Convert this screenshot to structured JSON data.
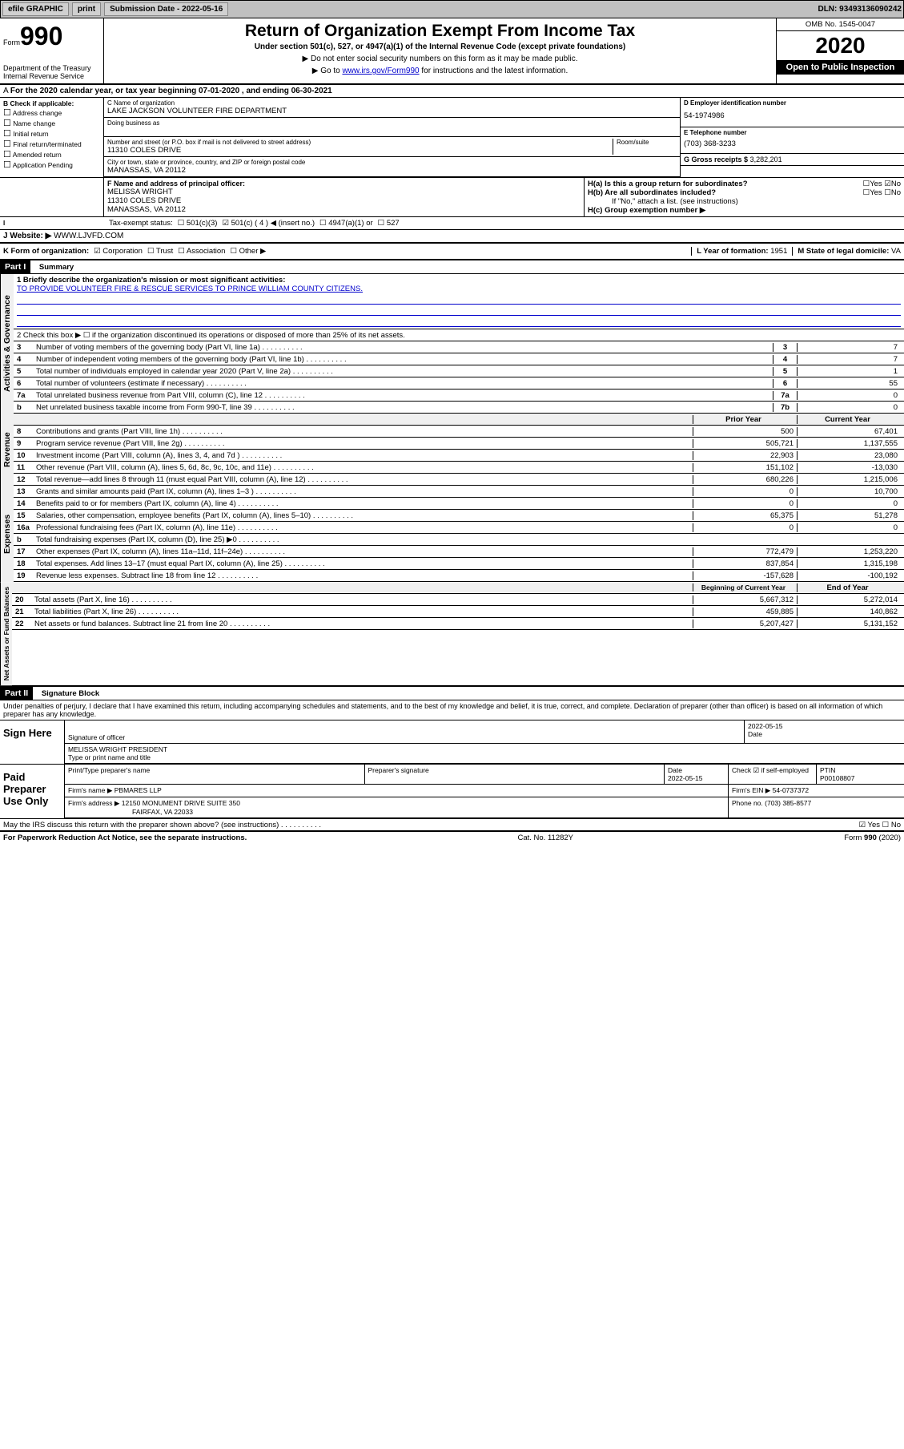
{
  "topbar": {
    "efile": "efile GRAPHIC",
    "print": "print",
    "sub_label": "Submission Date - 2022-05-16",
    "dln": "DLN: 93493136090242"
  },
  "header": {
    "form_word": "Form",
    "form_num": "990",
    "dept": "Department of the Treasury\nInternal Revenue Service",
    "title": "Return of Organization Exempt From Income Tax",
    "subtitle": "Under section 501(c), 527, or 4947(a)(1) of the Internal Revenue Code (except private foundations)",
    "note1": "▶ Do not enter social security numbers on this form as it may be made public.",
    "note2_pre": "▶ Go to ",
    "note2_link": "www.irs.gov/Form990",
    "note2_post": " for instructions and the latest information.",
    "omb": "OMB No. 1545-0047",
    "year": "2020",
    "open": "Open to Public Inspection"
  },
  "row_a": "For the 2020 calendar year, or tax year beginning 07-01-2020    , and ending 06-30-2021",
  "section_b": {
    "heading": "B Check if applicable:",
    "items": [
      "Address change",
      "Name change",
      "Initial return",
      "Final return/terminated",
      "Amended return",
      "Application Pending"
    ]
  },
  "section_c": {
    "name_label": "C Name of organization",
    "name": "LAKE JACKSON VOLUNTEER FIRE DEPARTMENT",
    "dba_label": "Doing business as",
    "street_label": "Number and street (or P.O. box if mail is not delivered to street address)",
    "room_label": "Room/suite",
    "street": "11310 COLES DRIVE",
    "city_label": "City or town, state or province, country, and ZIP or foreign postal code",
    "city": "MANASSAS, VA  20112"
  },
  "section_d": {
    "ein_label": "D Employer identification number",
    "ein": "54-1974986",
    "phone_label": "E Telephone number",
    "phone": "(703) 368-3233",
    "gross_label": "G Gross receipts $",
    "gross": "3,282,201"
  },
  "section_f": {
    "label": "F  Name and address of principal officer:",
    "name": "MELISSA WRIGHT",
    "street": "11310 COLES DRIVE",
    "city": "MANASSAS, VA  20112"
  },
  "section_h": {
    "ha": "H(a)  Is this a group return for subordinates?",
    "hb": "H(b)  Are all subordinates included?",
    "hb_note": "If \"No,\" attach a list. (see instructions)",
    "hc": "H(c)  Group exemption number ▶",
    "yes": "Yes",
    "no": "No"
  },
  "tax_status": {
    "label": "Tax-exempt status:",
    "opt1": "501(c)(3)",
    "opt2": "501(c) ( 4 ) ◀ (insert no.)",
    "opt3": "4947(a)(1) or",
    "opt4": "527"
  },
  "website": {
    "label": "J   Website: ▶",
    "val": "WWW.LJVFD.COM"
  },
  "row_k": {
    "k": "K Form of organization:",
    "corp": "Corporation",
    "trust": "Trust",
    "assoc": "Association",
    "other": "Other ▶",
    "l": "L Year of formation:",
    "l_val": "1951",
    "m": "M State of legal domicile:",
    "m_val": "VA"
  },
  "part1": {
    "label": "Part I",
    "title": "Summary"
  },
  "mission": {
    "q1": "1   Briefly describe the organization's mission or most significant activities:",
    "text": "TO PROVIDE VOLUNTEER FIRE & RESCUE SERVICES TO PRINCE WILLIAM COUNTY CITIZENS.",
    "q2": "2   Check this box ▶ ☐  if the organization discontinued its operations or disposed of more than 25% of its net assets."
  },
  "gov_lines": [
    {
      "n": "3",
      "t": "Number of voting members of the governing body (Part VI, line 1a)",
      "box": "3",
      "v": "7"
    },
    {
      "n": "4",
      "t": "Number of independent voting members of the governing body (Part VI, line 1b)",
      "box": "4",
      "v": "7"
    },
    {
      "n": "5",
      "t": "Total number of individuals employed in calendar year 2020 (Part V, line 2a)",
      "box": "5",
      "v": "1"
    },
    {
      "n": "6",
      "t": "Total number of volunteers (estimate if necessary)",
      "box": "6",
      "v": "55"
    },
    {
      "n": "7a",
      "t": "Total unrelated business revenue from Part VIII, column (C), line 12",
      "box": "7a",
      "v": "0"
    },
    {
      "n": "b",
      "t": "Net unrelated business taxable income from Form 990-T, line 39",
      "box": "7b",
      "v": "0"
    }
  ],
  "col_heads": {
    "prior": "Prior Year",
    "current": "Current Year",
    "begin": "Beginning of Current Year",
    "end": "End of Year"
  },
  "rev_lines": [
    {
      "n": "8",
      "t": "Contributions and grants (Part VIII, line 1h)",
      "p": "500",
      "c": "67,401"
    },
    {
      "n": "9",
      "t": "Program service revenue (Part VIII, line 2g)",
      "p": "505,721",
      "c": "1,137,555"
    },
    {
      "n": "10",
      "t": "Investment income (Part VIII, column (A), lines 3, 4, and 7d )",
      "p": "22,903",
      "c": "23,080"
    },
    {
      "n": "11",
      "t": "Other revenue (Part VIII, column (A), lines 5, 6d, 8c, 9c, 10c, and 11e)",
      "p": "151,102",
      "c": "-13,030"
    },
    {
      "n": "12",
      "t": "Total revenue—add lines 8 through 11 (must equal Part VIII, column (A), line 12)",
      "p": "680,226",
      "c": "1,215,006"
    }
  ],
  "exp_lines": [
    {
      "n": "13",
      "t": "Grants and similar amounts paid (Part IX, column (A), lines 1–3 )",
      "p": "0",
      "c": "10,700"
    },
    {
      "n": "14",
      "t": "Benefits paid to or for members (Part IX, column (A), line 4)",
      "p": "0",
      "c": "0"
    },
    {
      "n": "15",
      "t": "Salaries, other compensation, employee benefits (Part IX, column (A), lines 5–10)",
      "p": "65,375",
      "c": "51,278"
    },
    {
      "n": "16a",
      "t": "Professional fundraising fees (Part IX, column (A), line 11e)",
      "p": "0",
      "c": "0"
    },
    {
      "n": "b",
      "t": "Total fundraising expenses (Part IX, column (D), line 25) ▶0",
      "p": "",
      "c": "",
      "shade": true
    },
    {
      "n": "17",
      "t": "Other expenses (Part IX, column (A), lines 11a–11d, 11f–24e)",
      "p": "772,479",
      "c": "1,253,220"
    },
    {
      "n": "18",
      "t": "Total expenses. Add lines 13–17 (must equal Part IX, column (A), line 25)",
      "p": "837,854",
      "c": "1,315,198"
    },
    {
      "n": "19",
      "t": "Revenue less expenses. Subtract line 18 from line 12",
      "p": "-157,628",
      "c": "-100,192"
    }
  ],
  "net_lines": [
    {
      "n": "20",
      "t": "Total assets (Part X, line 16)",
      "p": "5,667,312",
      "c": "5,272,014"
    },
    {
      "n": "21",
      "t": "Total liabilities (Part X, line 26)",
      "p": "459,885",
      "c": "140,862"
    },
    {
      "n": "22",
      "t": "Net assets or fund balances. Subtract line 21 from line 20",
      "p": "5,207,427",
      "c": "5,131,152"
    }
  ],
  "vlabels": {
    "gov": "Activities & Governance",
    "rev": "Revenue",
    "exp": "Expenses",
    "net": "Net Assets or Fund Balances"
  },
  "part2": {
    "label": "Part II",
    "title": "Signature Block"
  },
  "perjury": "Under penalties of perjury, I declare that I have examined this return, including accompanying schedules and statements, and to the best of my knowledge and belief, it is true, correct, and complete. Declaration of preparer (other than officer) is based on all information of which preparer has any knowledge.",
  "sign": {
    "here": "Sign Here",
    "sig_label": "Signature of officer",
    "date_label": "Date",
    "date": "2022-05-15",
    "name": "MELISSA WRIGHT PRESIDENT",
    "name_label": "Type or print name and title"
  },
  "paid": {
    "label": "Paid Preparer Use Only",
    "h1": "Print/Type preparer's name",
    "h2": "Preparer's signature",
    "h3": "Date",
    "h3v": "2022-05-15",
    "h4": "Check ☑ if self-employed",
    "h5": "PTIN",
    "h5v": "P00108807",
    "firm_label": "Firm's name    ▶",
    "firm": "PBMARES LLP",
    "ein_label": "Firm's EIN ▶",
    "ein": "54-0737372",
    "addr_label": "Firm's address ▶",
    "addr": "12150 MONUMENT DRIVE SUITE 350",
    "addr2": "FAIRFAX, VA  22033",
    "phone_label": "Phone no.",
    "phone": "(703) 385-8577"
  },
  "irs_discuss": "May the IRS discuss this return with the preparer shown above? (see instructions)",
  "footer": {
    "left": "For Paperwork Reduction Act Notice, see the separate instructions.",
    "mid": "Cat. No. 11282Y",
    "right": "Form 990 (2020)"
  }
}
